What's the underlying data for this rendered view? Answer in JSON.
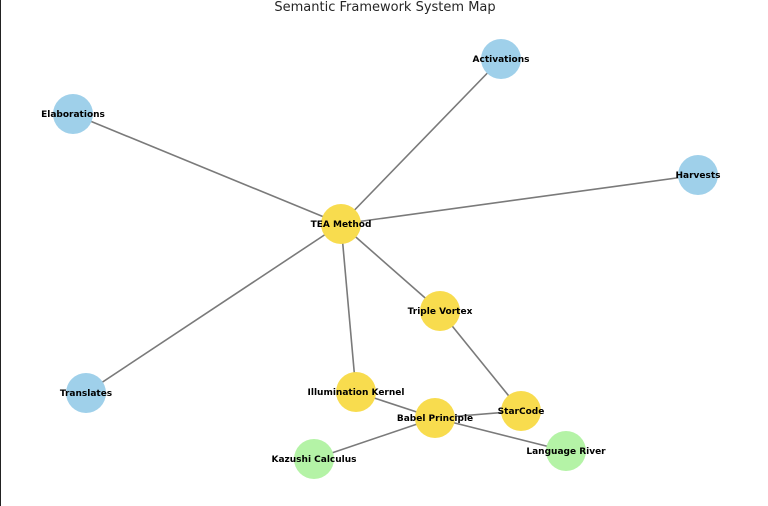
{
  "title": "Semantic Framework System Map",
  "colors": {
    "blue": "#9fd0ea",
    "yellow": "#f8dc4e",
    "green": "#b4f3a6",
    "edge": "#7a7a7a"
  },
  "nodes": [
    {
      "id": "tea",
      "label": "TEA Method",
      "color": "yellow"
    },
    {
      "id": "activations",
      "label": "Activations",
      "color": "blue"
    },
    {
      "id": "elaborations",
      "label": "Elaborations",
      "color": "blue"
    },
    {
      "id": "harvests",
      "label": "Harvests",
      "color": "blue"
    },
    {
      "id": "translates",
      "label": "Translates",
      "color": "blue"
    },
    {
      "id": "triple",
      "label": "Triple Vortex",
      "color": "yellow"
    },
    {
      "id": "illumination",
      "label": "Illumination Kernel",
      "color": "yellow"
    },
    {
      "id": "babel",
      "label": "Babel Principle",
      "color": "yellow"
    },
    {
      "id": "starcode",
      "label": "StarCode",
      "color": "yellow"
    },
    {
      "id": "kazushi",
      "label": "Kazushi Calculus",
      "color": "green"
    },
    {
      "id": "language",
      "label": "Language River",
      "color": "green"
    }
  ],
  "edges": [
    [
      "tea",
      "activations"
    ],
    [
      "tea",
      "elaborations"
    ],
    [
      "tea",
      "harvests"
    ],
    [
      "tea",
      "translates"
    ],
    [
      "tea",
      "triple"
    ],
    [
      "tea",
      "illumination"
    ],
    [
      "triple",
      "starcode"
    ],
    [
      "illumination",
      "babel"
    ],
    [
      "babel",
      "starcode"
    ],
    [
      "babel",
      "kazushi"
    ],
    [
      "babel",
      "language"
    ]
  ]
}
